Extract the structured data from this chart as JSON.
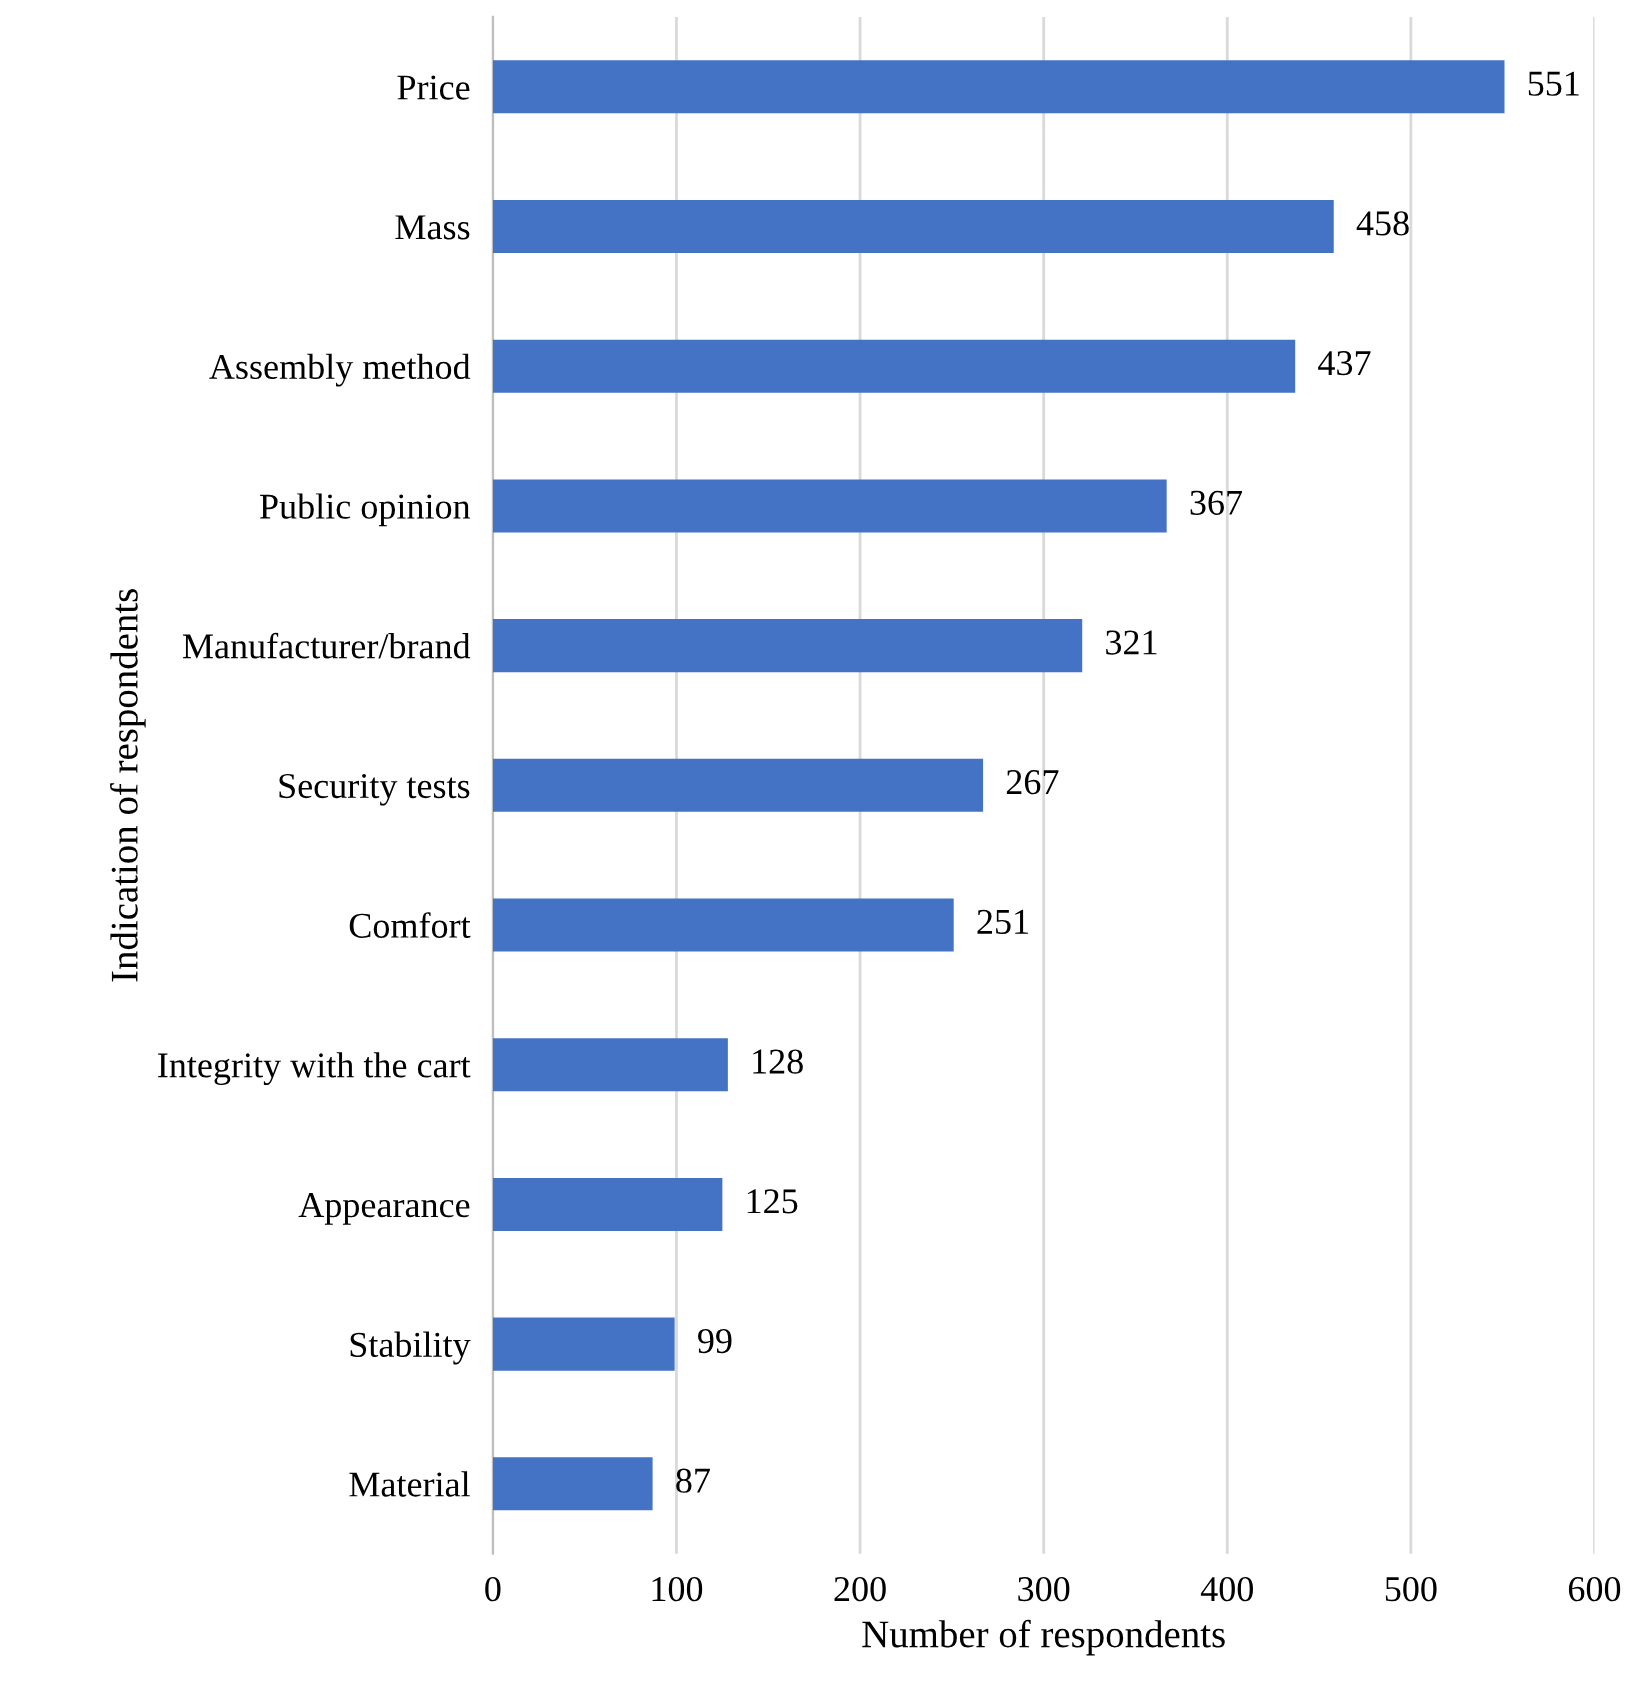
{
  "chart_data": {
    "type": "bar",
    "orientation": "horizontal",
    "xlabel": "Number of respondents",
    "ylabel": "Indication of respondents",
    "categories": [
      "Price",
      "Mass",
      "Assembly method",
      "Public opinion",
      "Manufacturer/brand",
      "Security tests",
      "Comfort",
      "Integrity with the cart",
      "Appearance",
      "Stability",
      "Material"
    ],
    "values": [
      551,
      458,
      437,
      367,
      321,
      267,
      251,
      128,
      125,
      99,
      87
    ],
    "color": "#4472c4",
    "data_labels": true,
    "grid": "x",
    "xlim": [
      0,
      600
    ],
    "xticks": [
      0,
      100,
      200,
      300,
      400,
      500,
      600
    ]
  }
}
